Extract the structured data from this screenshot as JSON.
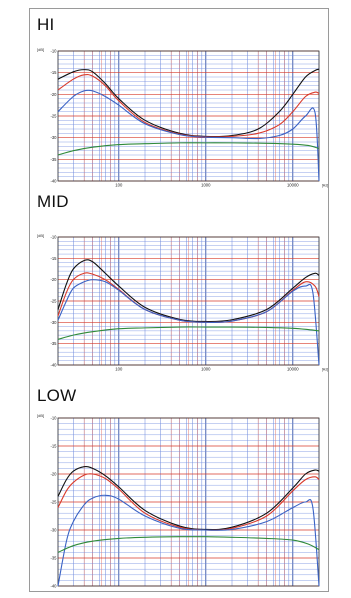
{
  "chart_data": [
    {
      "type": "line",
      "title": "HI",
      "ylabel": "[dB]",
      "xlabel": "[Hz]",
      "x_scale": "log",
      "xlim": [
        20,
        20000
      ],
      "ylim": [
        -40,
        -10
      ],
      "yticks": [
        -10,
        -15,
        -20,
        -25,
        -30,
        -35,
        -40
      ],
      "ytick_labels": [
        "-10",
        "-15",
        "-20",
        "-25",
        "-30",
        "-35",
        "-40"
      ],
      "xtick_labels": [
        "100",
        "1000",
        "10000"
      ],
      "xticks": [
        100,
        1000,
        10000
      ],
      "grid": true,
      "series": [
        {
          "color": "#111111",
          "x": [
            20,
            30,
            40,
            50,
            70,
            100,
            200,
            500,
            1000,
            2000,
            4000,
            7000,
            10000,
            14000,
            18000,
            20000
          ],
          "y": [
            -16.5,
            -14.8,
            -14.3,
            -14.8,
            -17.5,
            -21,
            -26,
            -29,
            -29.7,
            -29.5,
            -28,
            -24,
            -20,
            -16,
            -14.5,
            -14.2
          ]
        },
        {
          "color": "#d93a2b",
          "x": [
            20,
            30,
            40,
            50,
            70,
            100,
            200,
            500,
            1000,
            2000,
            4000,
            7000,
            10000,
            14000,
            18000,
            20000
          ],
          "y": [
            -19,
            -16.5,
            -15.5,
            -15.8,
            -18,
            -21.5,
            -26.5,
            -29.2,
            -29.8,
            -29.7,
            -29,
            -27,
            -24,
            -20.5,
            -19.5,
            -19.8
          ]
        },
        {
          "color": "#3a62c4",
          "x": [
            20,
            30,
            40,
            50,
            70,
            100,
            200,
            500,
            1000,
            2000,
            4000,
            7000,
            10000,
            14000,
            18000,
            20000
          ],
          "y": [
            -24,
            -20.5,
            -19.2,
            -19.2,
            -20.5,
            -22.5,
            -26.8,
            -29.3,
            -29.9,
            -30,
            -30.2,
            -29.5,
            -28,
            -25,
            -24.2,
            -40
          ]
        },
        {
          "color": "#2f8a3a",
          "x": [
            20,
            30,
            50,
            100,
            200,
            500,
            1000,
            2000,
            5000,
            10000,
            15000,
            20000
          ],
          "y": [
            -34,
            -33,
            -32.2,
            -31.6,
            -31.4,
            -31.2,
            -31.2,
            -31.2,
            -31.3,
            -31.5,
            -31.8,
            -32.5
          ]
        }
      ]
    },
    {
      "type": "line",
      "title": "MID",
      "ylabel": "[dB]",
      "xlabel": "[Hz]",
      "x_scale": "log",
      "xlim": [
        20,
        20000
      ],
      "ylim": [
        -40,
        -10
      ],
      "yticks": [
        -10,
        -15,
        -20,
        -25,
        -30,
        -35,
        -40
      ],
      "ytick_labels": [
        "-10",
        "-15",
        "-20",
        "-25",
        "-30",
        "-35",
        "-40"
      ],
      "xtick_labels": [
        "100",
        "1000",
        "10000"
      ],
      "xticks": [
        100,
        1000,
        10000
      ],
      "grid": true,
      "series": [
        {
          "color": "#111111",
          "x": [
            20,
            25,
            30,
            40,
            50,
            70,
            100,
            200,
            500,
            1000,
            2000,
            5000,
            10000,
            14000,
            18000,
            20000
          ],
          "y": [
            -27,
            -21,
            -17.5,
            -15.5,
            -15.8,
            -18.5,
            -21.5,
            -26.5,
            -29.3,
            -29.8,
            -29.4,
            -27,
            -22,
            -19.5,
            -18.5,
            -19
          ]
        },
        {
          "color": "#d93a2b",
          "x": [
            20,
            25,
            30,
            40,
            50,
            70,
            100,
            200,
            500,
            1000,
            2000,
            5000,
            10000,
            14000,
            18000,
            20000
          ],
          "y": [
            -28.5,
            -23,
            -20,
            -18.5,
            -18.7,
            -20,
            -22.3,
            -27,
            -29.5,
            -30,
            -29.7,
            -27.5,
            -22.5,
            -20.5,
            -21.5,
            -24
          ]
        },
        {
          "color": "#3a62c4",
          "x": [
            20,
            25,
            30,
            40,
            50,
            70,
            100,
            200,
            500,
            1000,
            2000,
            5000,
            10000,
            14000,
            17000,
            20000
          ],
          "y": [
            -29.5,
            -25,
            -22,
            -20.5,
            -20,
            -20.5,
            -22.5,
            -27,
            -29.5,
            -30,
            -29.7,
            -27.5,
            -22.7,
            -21.5,
            -23,
            -40
          ]
        },
        {
          "color": "#2f8a3a",
          "x": [
            20,
            30,
            50,
            100,
            200,
            500,
            1000,
            2000,
            5000,
            10000,
            15000,
            20000
          ],
          "y": [
            -34,
            -33,
            -32.2,
            -31.5,
            -31.3,
            -31.1,
            -31.1,
            -31.1,
            -31.2,
            -31.4,
            -31.7,
            -32
          ]
        }
      ]
    },
    {
      "type": "line",
      "title": "LOW",
      "ylabel": "[dB]",
      "xlabel": "",
      "x_scale": "log",
      "xlim": [
        20,
        20000
      ],
      "ylim": [
        -40,
        -10
      ],
      "yticks": [
        -10,
        -15,
        -20,
        -25,
        -30,
        -35,
        -40
      ],
      "ytick_labels": [
        "-10",
        "-15",
        "-20",
        "-25",
        "-30",
        "-35",
        "-40"
      ],
      "xtick_labels": [],
      "xticks": [
        100,
        1000,
        10000
      ],
      "grid": true,
      "series": [
        {
          "color": "#111111",
          "x": [
            20,
            25,
            30,
            40,
            50,
            70,
            100,
            200,
            500,
            1000,
            2000,
            5000,
            10000,
            14000,
            18000,
            20000
          ],
          "y": [
            -24,
            -21,
            -19.5,
            -18.7,
            -19,
            -20.3,
            -22.3,
            -26.5,
            -29.3,
            -29.9,
            -29.5,
            -27,
            -22.5,
            -20,
            -19.3,
            -19.5
          ]
        },
        {
          "color": "#d93a2b",
          "x": [
            20,
            25,
            30,
            40,
            50,
            70,
            100,
            200,
            500,
            1000,
            2000,
            5000,
            10000,
            14000,
            18000,
            20000
          ],
          "y": [
            -26,
            -23,
            -21.5,
            -20.2,
            -20,
            -20.8,
            -22.7,
            -27,
            -29.5,
            -30,
            -29.7,
            -27.5,
            -23,
            -21,
            -20.5,
            -21
          ]
        },
        {
          "color": "#3a62c4",
          "x": [
            20,
            25,
            30,
            40,
            50,
            70,
            100,
            200,
            500,
            1000,
            2000,
            5000,
            10000,
            14000,
            17000,
            20000
          ],
          "y": [
            -40,
            -32,
            -28.5,
            -25.5,
            -24.3,
            -23.8,
            -24.5,
            -27.5,
            -29.7,
            -30,
            -29.9,
            -28.5,
            -26,
            -25,
            -26,
            -40
          ]
        },
        {
          "color": "#2f8a3a",
          "x": [
            20,
            30,
            50,
            100,
            200,
            500,
            1000,
            2000,
            5000,
            10000,
            15000,
            20000
          ],
          "y": [
            -34,
            -32.8,
            -32,
            -31.5,
            -31.3,
            -31.2,
            -31.2,
            -31.3,
            -31.5,
            -31.8,
            -32.5,
            -33.5
          ]
        }
      ]
    }
  ]
}
